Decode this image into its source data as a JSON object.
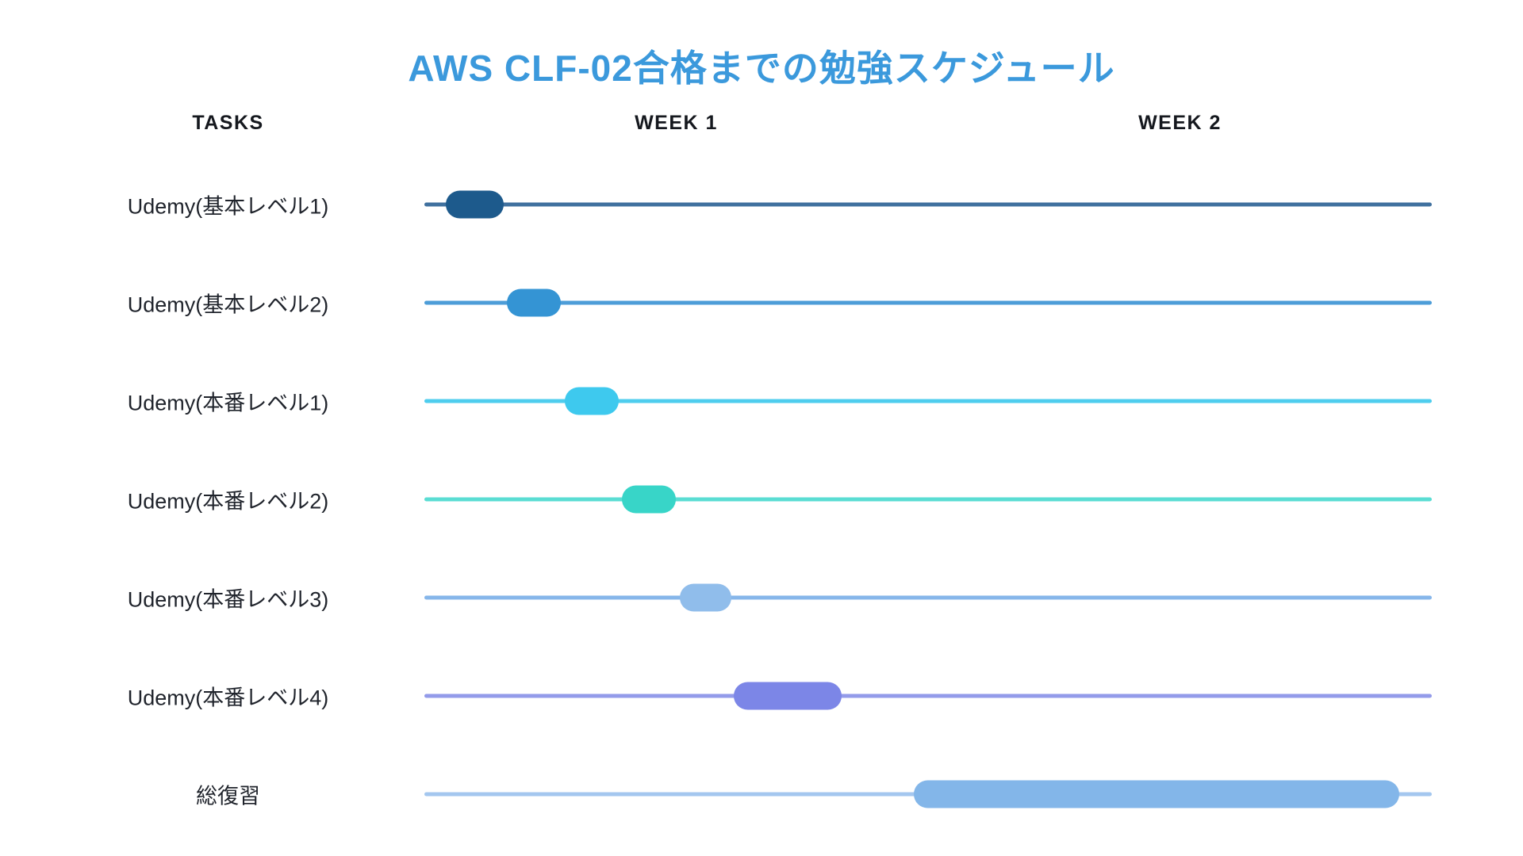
{
  "title": "AWS CLF-02合格までの勉強スケジュール",
  "title_color": "#3b99dc",
  "columns": {
    "tasks": "TASKS",
    "week1": "WEEK 1",
    "week2": "WEEK 2"
  },
  "chart_data": {
    "type": "bar",
    "subtype": "gantt-timeline",
    "title": "AWS CLF-02合格までの勉強スケジュール",
    "xlabel": "",
    "ylabel": "TASKS",
    "x_axis": {
      "unit": "days",
      "range": [
        0,
        14
      ],
      "week_headers": [
        "WEEK 1",
        "WEEK 2"
      ],
      "grid": false
    },
    "legend": "none",
    "tasks": [
      {
        "label": "Udemy(基本レベル1)",
        "start_day": 0.3,
        "end_day": 1.1,
        "pill_color": "#1d5a8c",
        "line_color": "#40719f"
      },
      {
        "label": "Udemy(基本レベル2)",
        "start_day": 1.15,
        "end_day": 1.9,
        "pill_color": "#3494d4",
        "line_color": "#4d9dd8"
      },
      {
        "label": "Udemy(本番レベル1)",
        "start_day": 1.95,
        "end_day": 2.7,
        "pill_color": "#3ec9ee",
        "line_color": "#4ecdee"
      },
      {
        "label": "Udemy(本番レベル2)",
        "start_day": 2.75,
        "end_day": 3.5,
        "pill_color": "#38d5c8",
        "line_color": "#5addd3"
      },
      {
        "label": "Udemy(本番レベル3)",
        "start_day": 3.55,
        "end_day": 4.27,
        "pill_color": "#90bdeb",
        "line_color": "#86b6ea"
      },
      {
        "label": "Udemy(本番レベル4)",
        "start_day": 4.3,
        "end_day": 5.8,
        "pill_color": "#7c86e7",
        "line_color": "#939bea"
      },
      {
        "label": "総復習",
        "start_day": 6.8,
        "end_day": 13.55,
        "pill_color": "#83b6e9",
        "line_color": "#a4c7ef"
      }
    ]
  }
}
